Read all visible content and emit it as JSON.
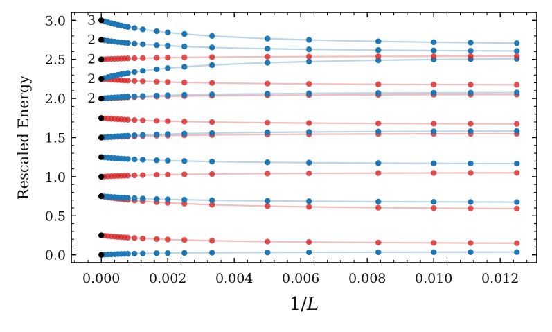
{
  "chart_data": {
    "type": "scatter",
    "title": "",
    "xlabel": "1/L",
    "ylabel": "Rescaled Energy",
    "xlim": [
      -0.0009,
      0.0131
    ],
    "ylim": [
      -0.1,
      3.1
    ],
    "xticks": [
      0.0,
      0.002,
      0.004,
      0.006,
      0.008,
      0.01,
      0.012
    ],
    "xtick_labels": [
      "0.000",
      "0.002",
      "0.004",
      "0.006",
      "0.008",
      "0.010",
      "0.012"
    ],
    "yticks": [
      0.0,
      0.5,
      1.0,
      1.5,
      2.0,
      2.5,
      3.0
    ],
    "ytick_labels": [
      "0.0",
      "0.5",
      "1.0",
      "1.5",
      "2.0",
      "2.5",
      "3.0"
    ],
    "x": [
      0.0001,
      0.0002,
      0.0003,
      0.0004,
      0.0005,
      0.0006,
      0.0007,
      0.0008,
      0.001,
      0.00125,
      0.001667,
      0.002,
      0.0025,
      0.003333,
      0.005,
      0.00625,
      0.008333,
      0.01,
      0.01111,
      0.0125
    ],
    "colors": {
      "blue": "#1f77b4",
      "red": "#d62728",
      "black": "#000000"
    },
    "series": [
      {
        "name": "blue-1",
        "color": "blue",
        "e0": 0.0,
        "e1": 0.04,
        "c": 0.0015
      },
      {
        "name": "red-1",
        "color": "red",
        "e0": 0.25,
        "e1": 0.13,
        "c": 0.0025
      },
      {
        "name": "red-2",
        "color": "red",
        "e0": 0.75,
        "e1": 0.56,
        "c": 0.0025
      },
      {
        "name": "blue-2",
        "color": "blue",
        "e0": 0.75,
        "e1": 0.66,
        "c": 0.0025
      },
      {
        "name": "red-3",
        "color": "red",
        "e0": 1.0,
        "e1": 1.06,
        "c": 0.0025
      },
      {
        "name": "blue-3",
        "color": "blue",
        "e0": 1.25,
        "e1": 1.15,
        "c": 0.0025
      },
      {
        "name": "red-4",
        "color": "red",
        "e0": 1.5,
        "e1": 1.56,
        "c": 0.0025
      },
      {
        "name": "blue-4",
        "color": "blue",
        "e0": 1.5,
        "e1": 1.6,
        "c": 0.0025
      },
      {
        "name": "red-5",
        "color": "red",
        "e0": 1.75,
        "e1": 1.66,
        "c": 0.0025
      },
      {
        "name": "red-6",
        "color": "red",
        "e0": 2.0,
        "e1": 2.06,
        "c": 0.0025
      },
      {
        "name": "blue-5",
        "color": "blue",
        "e0": 2.0,
        "e1": 2.09,
        "c": 0.0025
      },
      {
        "name": "red-7",
        "color": "red",
        "e0": 2.25,
        "e1": 2.16,
        "c": 0.0025
      },
      {
        "name": "blue-6",
        "color": "blue",
        "e0": 2.25,
        "e1": 2.56,
        "c": 0.0025
      },
      {
        "name": "red-8",
        "color": "red",
        "e0": 2.5,
        "e1": 2.55,
        "c": 0.0025
      },
      {
        "name": "blue-7",
        "color": "blue",
        "e0": 2.75,
        "e1": 2.58,
        "c": 0.0025
      },
      {
        "name": "blue-8",
        "color": "blue",
        "e0": 3.0,
        "e1": 2.65,
        "c": 0.0025
      }
    ],
    "limits": [
      0.0,
      0.25,
      0.75,
      1.0,
      1.25,
      1.5,
      1.75,
      2.0,
      2.25,
      2.5,
      2.75,
      3.0
    ],
    "degeneracy_labels": [
      {
        "text": "3",
        "y": 3.0
      },
      {
        "text": "2",
        "y": 2.75
      },
      {
        "text": "2",
        "y": 2.5
      },
      {
        "text": "2",
        "y": 2.25
      },
      {
        "text": "2",
        "y": 2.0
      }
    ]
  }
}
